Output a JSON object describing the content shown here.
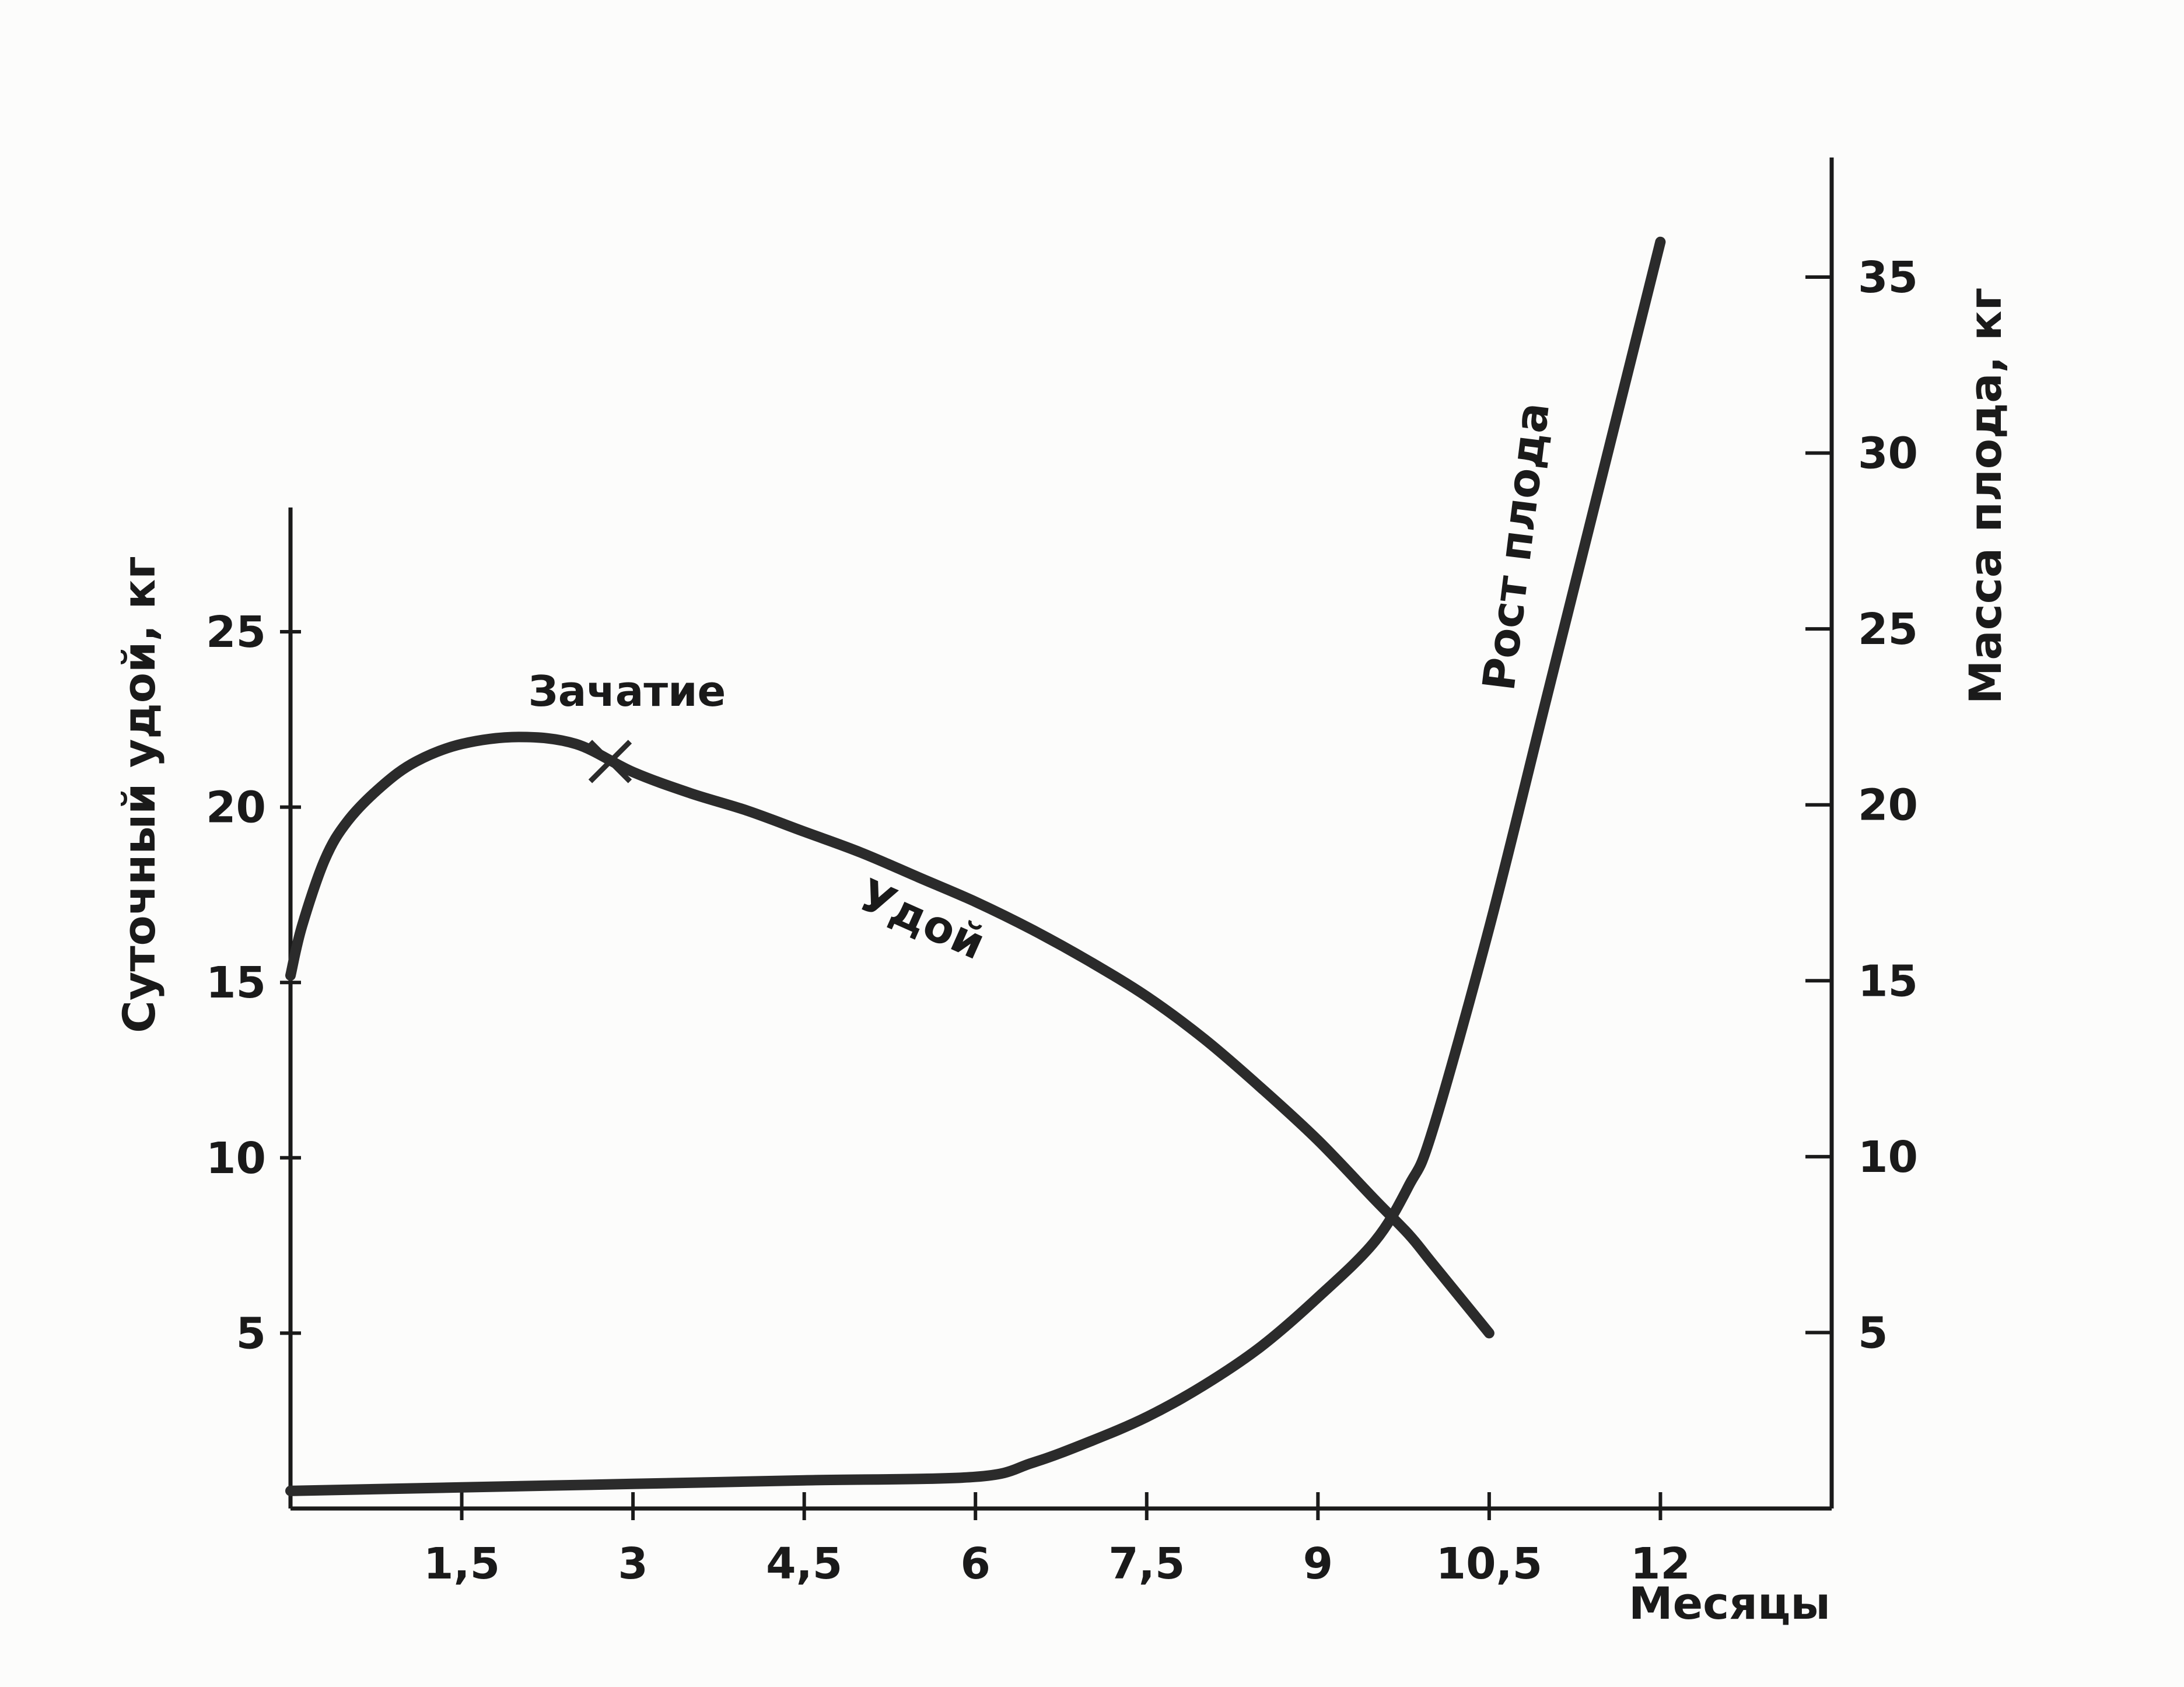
{
  "chart_data": {
    "type": "line",
    "xlabel": "Месяцы",
    "x_ticks": [
      {
        "value": 1.5,
        "label": "1,5"
      },
      {
        "value": 3,
        "label": "3"
      },
      {
        "value": 4.5,
        "label": "4,5"
      },
      {
        "value": 6,
        "label": "6"
      },
      {
        "value": 7.5,
        "label": "7,5"
      },
      {
        "value": 9,
        "label": "9"
      },
      {
        "value": 10.5,
        "label": "10,5"
      },
      {
        "value": 12,
        "label": "12"
      }
    ],
    "xlim": [
      0,
      13.5
    ],
    "ylabel_left": "Суточный удой, кг",
    "ylim_left": [
      0,
      28
    ],
    "y_ticks_left": [
      5,
      10,
      15,
      20,
      25
    ],
    "ylabel_right": "Масса плода, кг",
    "ylim_right": [
      0,
      38
    ],
    "y_ticks_right": [
      5,
      10,
      15,
      20,
      25,
      30,
      35
    ],
    "grid": false,
    "colors": {
      "line": "#2b2b2b",
      "axis": "#1a1a1a"
    },
    "series": [
      {
        "name": "Удой",
        "axis": "left",
        "x": [
          0,
          0.1,
          0.3,
          0.5,
          0.8,
          1.1,
          1.5,
          2.0,
          2.5,
          3.0,
          3.5,
          4.0,
          4.5,
          5.0,
          5.5,
          6.0,
          6.5,
          7.0,
          7.5,
          8.0,
          8.5,
          9.0,
          9.5,
          9.8,
          10.0,
          10.5
        ],
        "y": [
          15.2,
          16.6,
          18.5,
          19.6,
          20.6,
          21.3,
          21.8,
          22.0,
          21.8,
          21.0,
          20.4,
          19.9,
          19.3,
          18.7,
          18.0,
          17.3,
          16.5,
          15.6,
          14.6,
          13.4,
          12.0,
          10.5,
          8.8,
          7.8,
          7.0,
          5.0
        ]
      },
      {
        "name": "Рост плода",
        "axis": "right",
        "x": [
          0,
          1.5,
          3.0,
          4.5,
          6.0,
          6.5,
          7.0,
          7.5,
          8.0,
          8.5,
          9.0,
          9.5,
          9.8,
          10.0,
          10.5,
          11.0,
          11.5,
          12.0
        ],
        "y": [
          0.5,
          0.6,
          0.7,
          0.8,
          0.9,
          1.3,
          1.9,
          2.6,
          3.5,
          4.6,
          6.0,
          7.6,
          9.2,
          10.7,
          16.5,
          23.0,
          29.5,
          36.0
        ]
      }
    ],
    "annotations": [
      {
        "text": "Зачатие",
        "x": 2.8,
        "y": 21.3,
        "axis": "left",
        "marker": "x"
      },
      {
        "text": "Удой",
        "series": "Удой"
      },
      {
        "text": "Рост плода",
        "series": "Рост плода"
      }
    ]
  }
}
